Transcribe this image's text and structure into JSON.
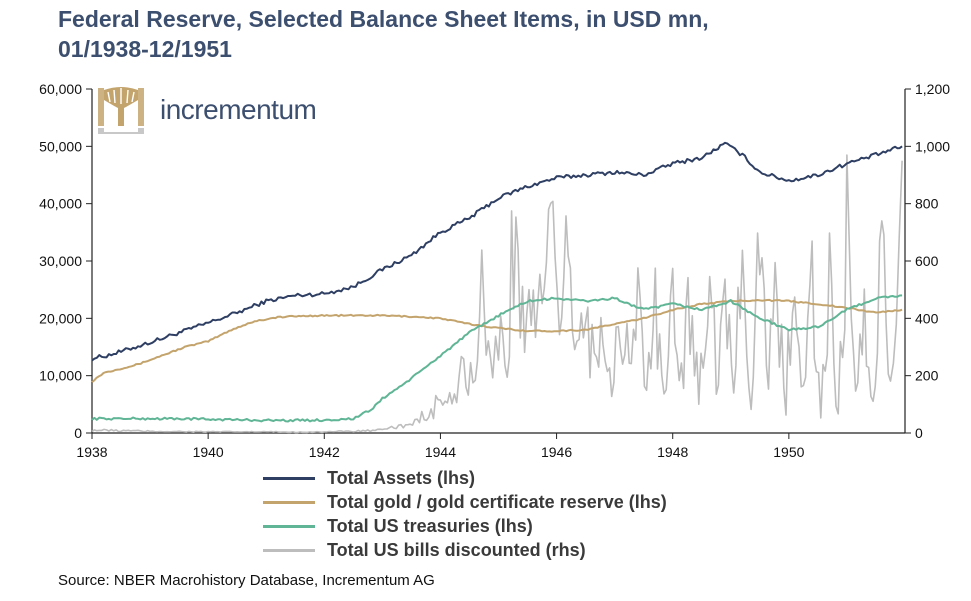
{
  "title_line1": "Federal Reserve, Selected Balance Sheet Items, in USD mn,",
  "title_line2": "01/1938-12/1951",
  "logo_text": "incrementum",
  "source": "Source: NBER Macrohistory Database, Incrementum AG",
  "colors": {
    "total_assets": "#2e3f63",
    "gold": "#c4a46d",
    "treasuries": "#5fb595",
    "bills": "#bdbdbd",
    "logo_gold": "#c4a46d",
    "title": "#3d4f6f"
  },
  "chart_data": {
    "type": "line",
    "title": "Federal Reserve, Selected Balance Sheet Items, in USD mn, 01/1938-12/1951",
    "x_ticks": [
      "1938",
      "1940",
      "1942",
      "1944",
      "1946",
      "1948",
      "1950"
    ],
    "x_range": [
      1938.0,
      1952.0
    ],
    "y_left": {
      "ticks": [
        "0",
        "10,000",
        "20,000",
        "30,000",
        "40,000",
        "50,000",
        "60,000"
      ],
      "range": [
        0,
        60000
      ]
    },
    "y_right": {
      "ticks": [
        "0",
        "200",
        "400",
        "600",
        "800",
        "1,000",
        "1,200"
      ],
      "range": [
        0,
        1200
      ]
    },
    "series": [
      {
        "name": "Total Assets (lhs)",
        "axis": "left",
        "color_key": "total_assets",
        "x": [
          1938.0,
          1938.25,
          1938.5,
          1939.0,
          1939.5,
          1940.0,
          1940.5,
          1941.0,
          1941.5,
          1942.0,
          1942.5,
          1943.0,
          1943.5,
          1944.0,
          1944.5,
          1945.0,
          1945.5,
          1946.0,
          1946.5,
          1947.0,
          1947.5,
          1948.0,
          1948.5,
          1948.9,
          1949.2,
          1949.5,
          1950.0,
          1950.5,
          1951.0,
          1951.5,
          1951.95
        ],
        "values": [
          13000,
          13500,
          14200,
          15800,
          17500,
          19200,
          21000,
          23000,
          24000,
          24300,
          25500,
          28500,
          31000,
          35000,
          37500,
          41000,
          43000,
          44500,
          45000,
          45500,
          45000,
          47000,
          48000,
          50500,
          48500,
          45500,
          44000,
          45000,
          47000,
          48500,
          50000
        ]
      },
      {
        "name": "Total gold / gold certificate reserve (lhs)",
        "axis": "left",
        "color_key": "gold",
        "x": [
          1938.0,
          1938.2,
          1938.4,
          1938.8,
          1939.2,
          1939.6,
          1940.0,
          1940.4,
          1940.8,
          1941.2,
          1941.6,
          1942.0,
          1943.0,
          1943.5,
          1944.0,
          1944.5,
          1945.0,
          1945.5,
          1946.0,
          1946.5,
          1947.0,
          1947.5,
          1948.0,
          1948.5,
          1949.0,
          1949.5,
          1950.0,
          1950.5,
          1951.0,
          1951.5,
          1951.95
        ],
        "values": [
          9000,
          10500,
          11000,
          12000,
          13500,
          15000,
          16000,
          18000,
          19500,
          20200,
          20400,
          20500,
          20500,
          20300,
          20000,
          19000,
          18300,
          17800,
          17800,
          18000,
          19000,
          20000,
          21500,
          22500,
          23000,
          23200,
          23000,
          22500,
          21800,
          21000,
          21500
        ]
      },
      {
        "name": "Total US treasuries (lhs)",
        "axis": "left",
        "color_key": "treasuries",
        "x": [
          1938.0,
          1939.0,
          1939.5,
          1940.0,
          1940.5,
          1941.0,
          1941.5,
          1942.0,
          1942.5,
          1942.8,
          1943.0,
          1943.5,
          1944.0,
          1944.5,
          1945.0,
          1945.5,
          1946.0,
          1946.5,
          1947.0,
          1947.5,
          1948.0,
          1948.5,
          1949.0,
          1949.5,
          1950.0,
          1950.5,
          1951.0,
          1951.5,
          1951.95
        ],
        "values": [
          2500,
          2500,
          2500,
          2400,
          2300,
          2200,
          2200,
          2250,
          2500,
          4000,
          6000,
          9500,
          13500,
          17500,
          20500,
          23000,
          23500,
          23000,
          23500,
          21500,
          22500,
          21500,
          23000,
          20000,
          18000,
          18500,
          21500,
          23500,
          24000
        ]
      },
      {
        "name": "Total US bills discounted (rhs)",
        "axis": "right",
        "color_key": "bills",
        "x": [
          1938.0,
          1938.5,
          1939.0,
          1939.5,
          1940.0,
          1940.5,
          1941.0,
          1941.5,
          1942.0,
          1942.5,
          1943.0,
          1943.4,
          1943.6,
          1943.8,
          1944.0,
          1944.2,
          1944.4,
          1944.6,
          1944.75,
          1944.9,
          1945.0,
          1945.15,
          1945.3,
          1945.45,
          1945.6,
          1945.75,
          1945.9,
          1946.05,
          1946.2,
          1946.35,
          1946.5,
          1946.65,
          1946.8,
          1946.95,
          1947.1,
          1947.25,
          1947.4,
          1947.55,
          1947.7,
          1947.85,
          1948.0,
          1948.15,
          1948.3,
          1948.45,
          1948.6,
          1948.75,
          1948.9,
          1949.05,
          1949.2,
          1949.35,
          1949.5,
          1949.65,
          1949.8,
          1949.95,
          1950.1,
          1950.25,
          1950.4,
          1950.55,
          1950.7,
          1950.85,
          1951.0,
          1951.15,
          1951.3,
          1951.45,
          1951.6,
          1951.75,
          1951.85,
          1951.95
        ],
        "values": [
          10,
          8,
          6,
          5,
          4,
          4,
          4,
          3,
          4,
          6,
          10,
          25,
          60,
          40,
          130,
          90,
          230,
          130,
          560,
          140,
          420,
          220,
          910,
          250,
          560,
          390,
          700,
          240,
          680,
          300,
          390,
          250,
          470,
          120,
          400,
          250,
          460,
          150,
          400,
          120,
          420,
          200,
          480,
          140,
          560,
          230,
          510,
          180,
          620,
          130,
          720,
          200,
          500,
          110,
          660,
          120,
          550,
          80,
          490,
          50,
          800,
          120,
          380,
          90,
          700,
          160,
          300,
          950
        ]
      }
    ],
    "legend_position": "bottom",
    "grid": false
  }
}
